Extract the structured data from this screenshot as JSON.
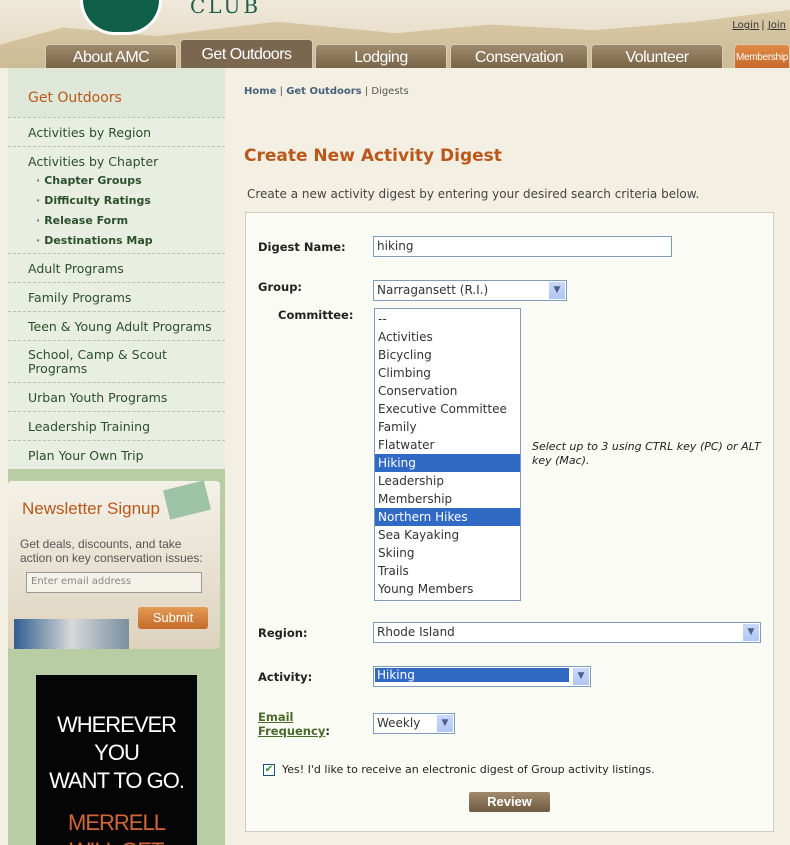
{
  "header": {
    "club_text": "CLUB",
    "login": "Login",
    "join": "Join",
    "tabs": [
      {
        "label": "About AMC"
      },
      {
        "label": "Get Outdoors",
        "active": true
      },
      {
        "label": "Lodging"
      },
      {
        "label": "Conservation"
      },
      {
        "label": "Volunteer"
      },
      {
        "label": "Membership"
      }
    ]
  },
  "sidebar": {
    "title": "Get Outdoors",
    "items": [
      "Activities by Region",
      "Activities by Chapter",
      "Adult Programs",
      "Family Programs",
      "Teen & Young Adult Programs",
      "School, Camp & Scout Programs",
      "Urban Youth Programs",
      "Leadership Training",
      "Plan Your Own Trip"
    ],
    "subitems": [
      "Chapter Groups",
      "Difficulty Ratings",
      "Release Form",
      "Destinations Map"
    ],
    "newsletter": {
      "title": "Newsletter Signup",
      "text": "Get deals, discounts, and take action on key conservation issues:",
      "placeholder": "Enter email address",
      "submit": "Submit"
    },
    "ad": {
      "line1": "WHEREVER YOU",
      "line2": "WANT TO GO.",
      "line3": "MERRELL",
      "line4": "WILL GET"
    }
  },
  "breadcrumb": {
    "home": "Home",
    "section": "Get Outdoors",
    "current": "Digests"
  },
  "page": {
    "title": "Create New Activity Digest",
    "intro": "Create a new activity digest by entering your desired search criteria below."
  },
  "form": {
    "digest_name_label": "Digest Name:",
    "digest_name_value": "hiking",
    "group_label": "Group:",
    "group_value": "Narragansett (R.I.)",
    "committee_label": "Committee:",
    "committee_options": [
      "--",
      "Activities",
      "Bicycling",
      "Climbing",
      "Conservation",
      "Executive Committee",
      "Family",
      "Flatwater",
      "Hiking",
      "Leadership",
      "Membership",
      "Northern Hikes",
      "Sea Kayaking",
      "Skiing",
      "Trails",
      "Young Members"
    ],
    "committee_selected": [
      "Hiking",
      "Northern Hikes"
    ],
    "committee_hint": "Select up to 3 using CTRL key (PC) or ALT key (Mac).",
    "region_label": "Region:",
    "region_value": "Rhode Island",
    "activity_label": "Activity:",
    "activity_value": "Hiking",
    "email_label_1": "Email",
    "email_label_2": "Frequency",
    "email_colon": ":",
    "frequency_value": "Weekly",
    "opt_in_checked": true,
    "opt_in_text": "Yes! I'd like to receive an electronic digest of Group activity listings.",
    "review": "Review"
  },
  "colors": {
    "accent": "#b9581a",
    "selection": "#316ac5",
    "tab": "#7b6650"
  }
}
